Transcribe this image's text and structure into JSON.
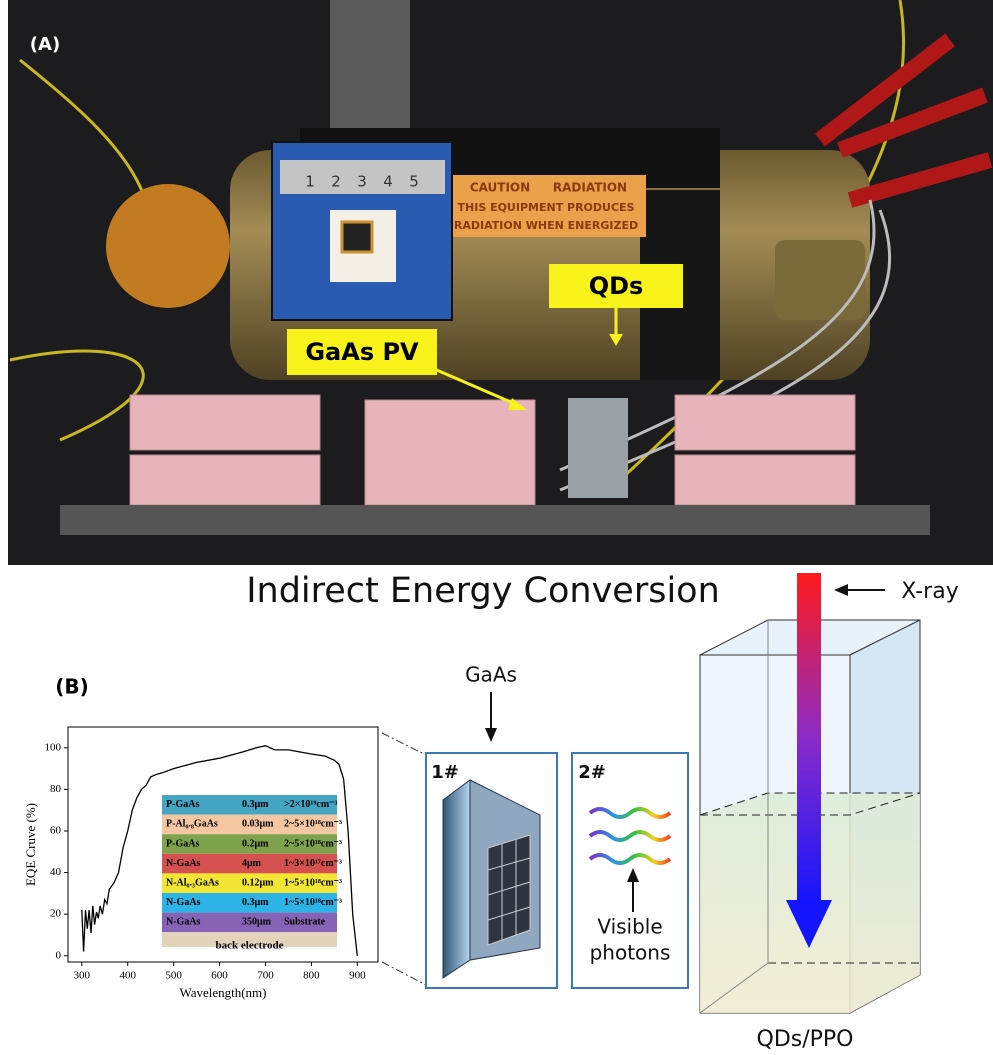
{
  "panel_a": {
    "label": "(A)",
    "qd_label": "QDs",
    "pv_label": "GaAs PV",
    "sign": [
      "CAUTION",
      "RADIATION",
      "THIS EQUIPMENT PRODUCES",
      "RADIATION WHEN ENERGIZED"
    ],
    "ruler": [
      "1",
      "2",
      "3",
      "4",
      "5"
    ]
  },
  "title": "Indirect Energy Conversion",
  "panel_b": {
    "label": "(B)",
    "gaas": "GaAs",
    "box1": "1#",
    "box2": "2#",
    "visible": [
      "Visible",
      "photons"
    ],
    "xray": "X-ray",
    "medium": "QDs/PPO"
  },
  "chart_data": {
    "type": "line",
    "x_label": "Wavelength(nm)",
    "y_label": "EQE Cruve (%)",
    "color": "#000000",
    "x": [
      300,
      304,
      308,
      312,
      316,
      320,
      324,
      328,
      332,
      336,
      340,
      345,
      350,
      355,
      360,
      370,
      380,
      390,
      400,
      410,
      420,
      430,
      440,
      450,
      460,
      475,
      500,
      550,
      600,
      650,
      680,
      700,
      720,
      750,
      800,
      830,
      850,
      860,
      870,
      880,
      890,
      900
    ],
    "values": [
      22,
      2,
      22,
      13,
      22,
      11,
      24,
      15,
      21,
      18,
      24,
      20,
      27,
      25,
      32,
      35,
      40,
      52,
      60,
      70,
      76,
      80,
      82,
      86,
      87,
      88,
      90,
      93,
      95,
      98,
      100,
      101,
      99,
      99,
      97,
      96,
      94,
      92,
      85,
      60,
      20,
      0
    ],
    "xlim": [
      270,
      945
    ],
    "ylim": [
      -3,
      110
    ],
    "xticks": [
      300,
      400,
      500,
      600,
      700,
      800,
      900
    ],
    "yticks": [
      0,
      20,
      40,
      60,
      80,
      100
    ],
    "layers": [
      {
        "name": "P-GaAs",
        "thickness": "0.3μm",
        "doping": ">2×10¹⁹cm⁻³",
        "color": "#45a6c4"
      },
      {
        "name": "P-Al₀.₈GaAs",
        "thickness": "0.03μm",
        "doping": "2~5×10¹⁸cm⁻³",
        "color": "#f4c7a2"
      },
      {
        "name": "P-GaAs",
        "thickness": "0.2μm",
        "doping": "2~5×10¹⁸cm⁻³",
        "color": "#7fa34c"
      },
      {
        "name": "N-GaAs",
        "thickness": "4μm",
        "doping": "1~3×10¹⁷cm⁻³",
        "color": "#d4514f"
      },
      {
        "name": "N-Al₀.₃GaAs",
        "thickness": "0.12μm",
        "doping": "1~5×10¹⁸cm⁻³",
        "color": "#f2e634"
      },
      {
        "name": "N-GaAs",
        "thickness": "0.3μm",
        "doping": "1~5×10¹⁸cm⁻³",
        "color": "#2eb3e6"
      },
      {
        "name": "N-GaAs",
        "thickness": "350μm",
        "doping": "Substrate",
        "color": "#8663b5"
      }
    ],
    "electrode": "back electrode"
  }
}
